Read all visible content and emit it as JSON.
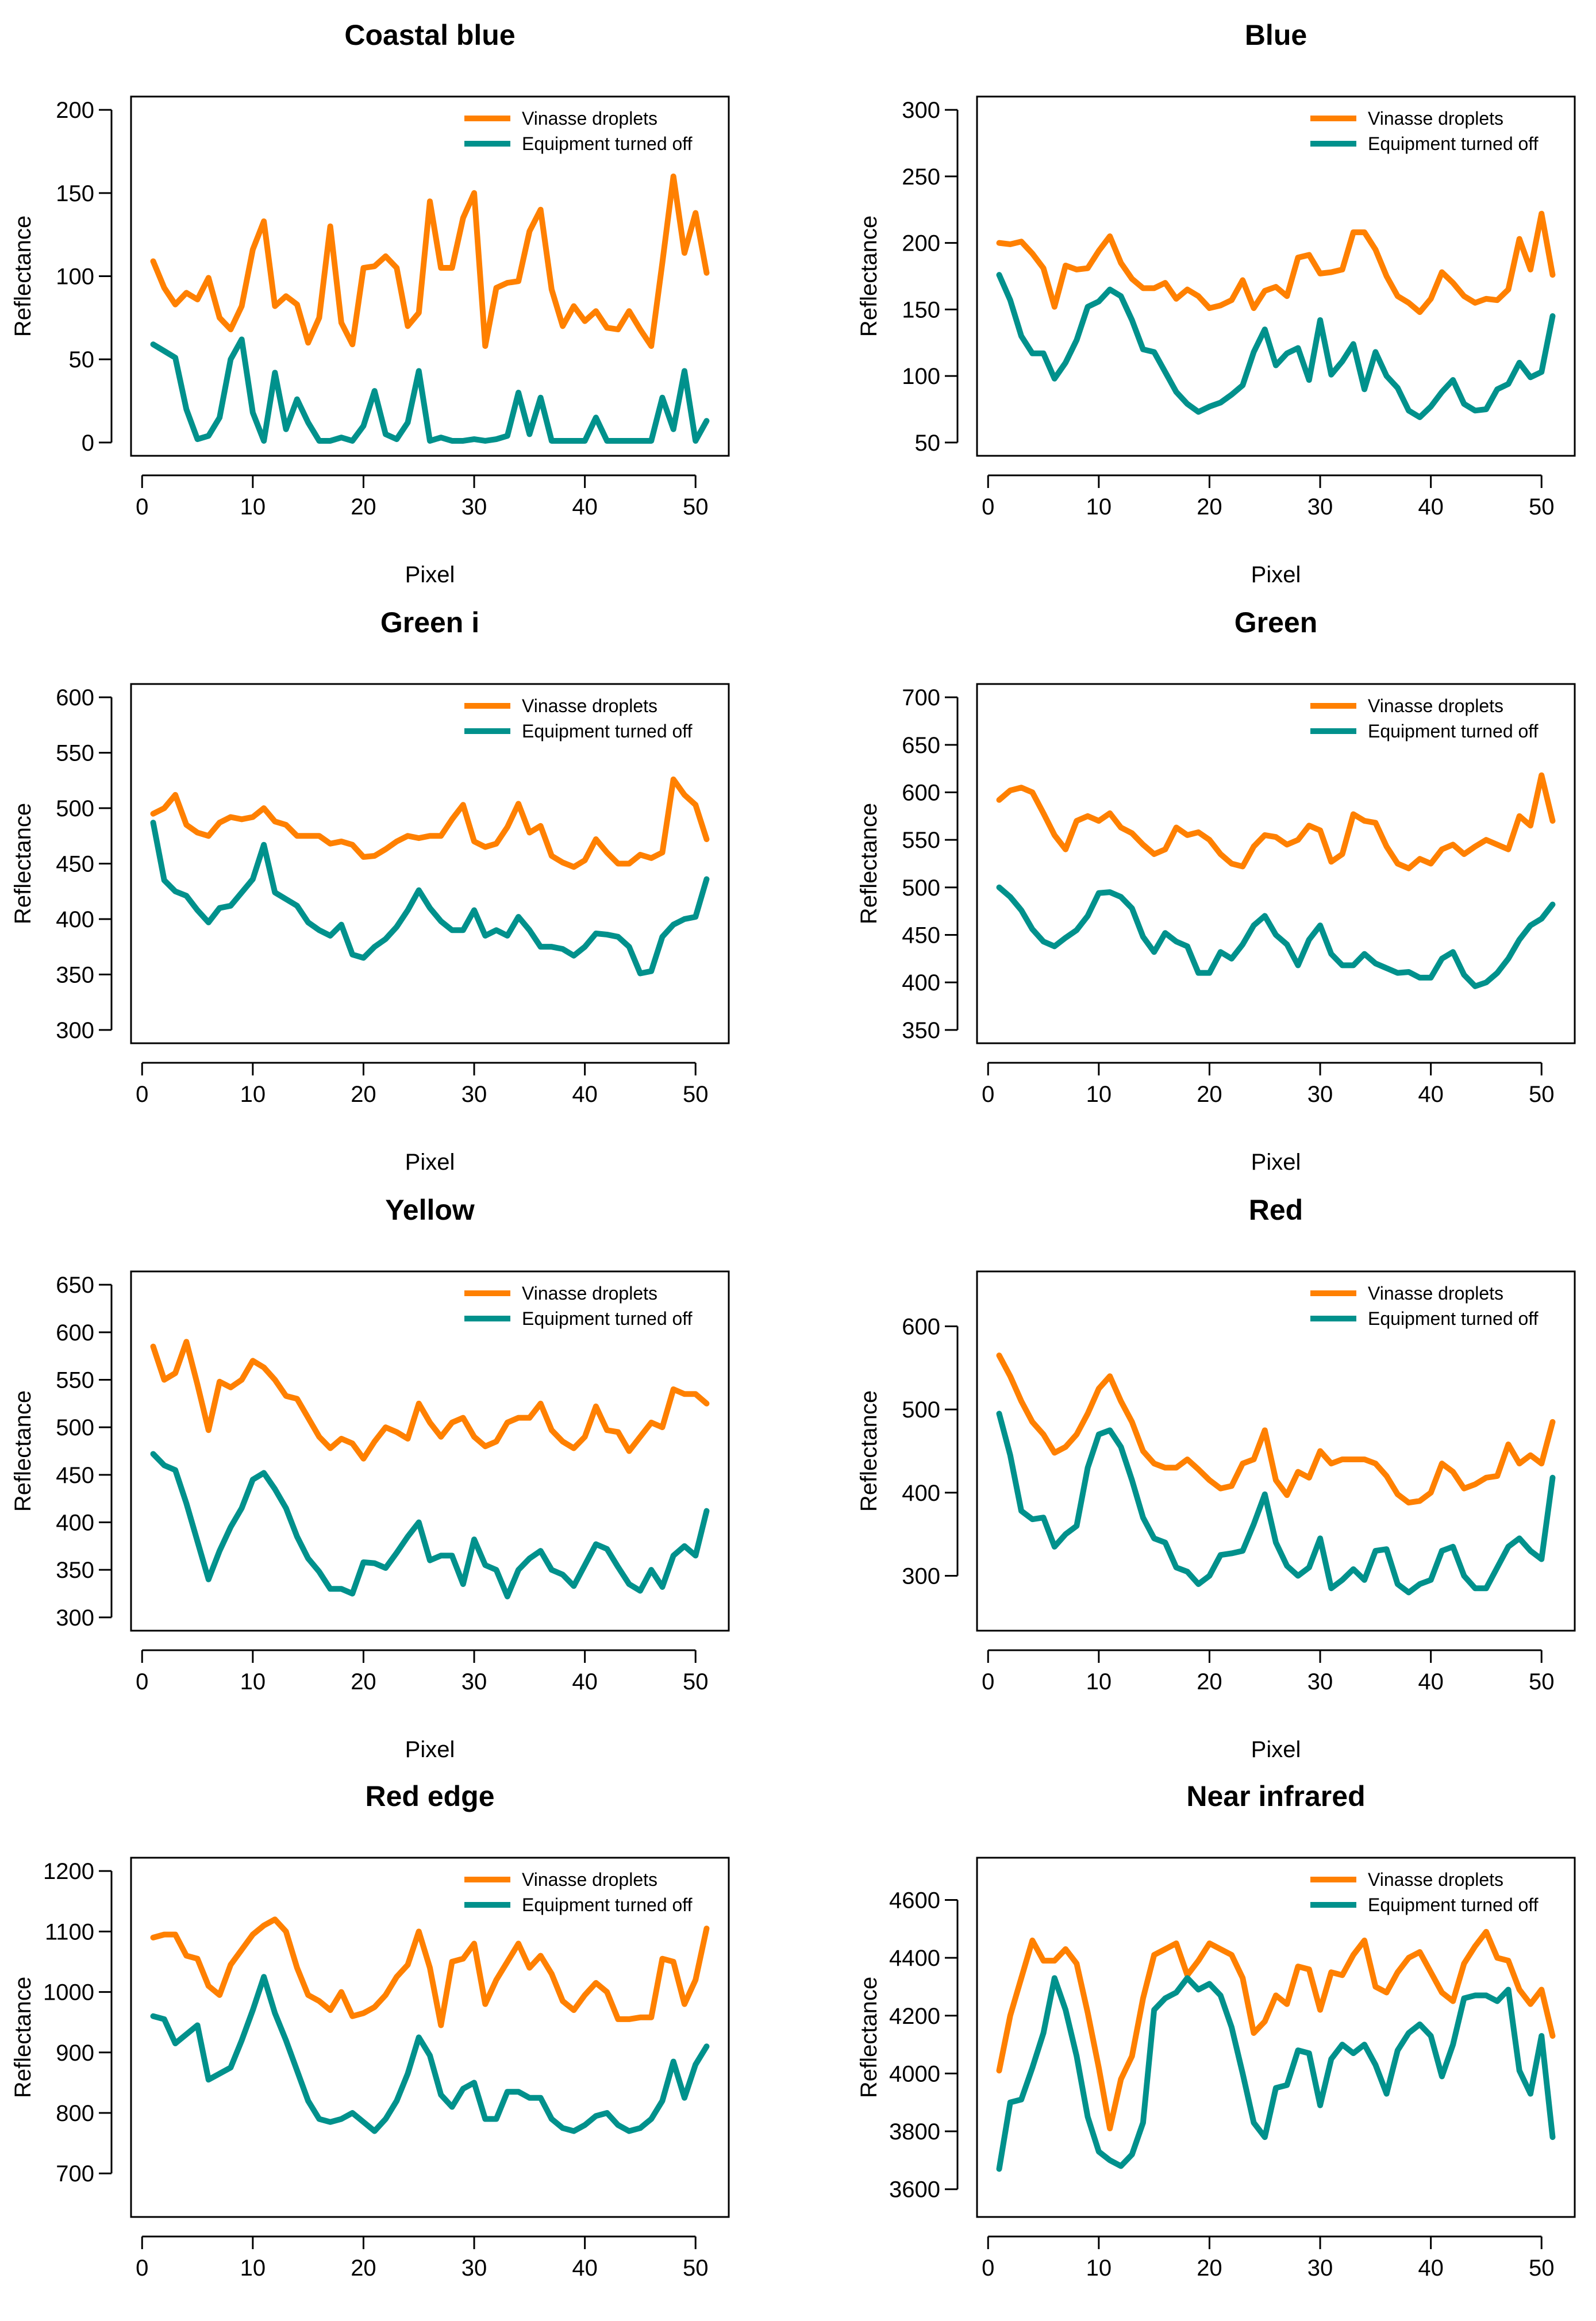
{
  "figure": {
    "x_label": "Pixel",
    "y_label": "Reflectance"
  },
  "colors": {
    "vinasse": "#FF8000",
    "off": "#00918C"
  },
  "chart_data": [
    {
      "type": "line",
      "title": "Coastal blue",
      "xlabel": "Pixel",
      "ylabel": "Reflectance",
      "xlim": [
        1,
        51
      ],
      "ylim": [
        0,
        200
      ],
      "xticks": [
        0,
        10,
        20,
        30,
        40,
        50
      ],
      "yticks": [
        0,
        50,
        100,
        150,
        200
      ],
      "legend_position": "top-right",
      "series": [
        {
          "name": "Vinasse droplets",
          "color": "#FF8000",
          "values": [
            109,
            93,
            83,
            90,
            86,
            99,
            75,
            68,
            82,
            116,
            133,
            82,
            88,
            83,
            60,
            75,
            130,
            72,
            59,
            105,
            106,
            112,
            105,
            70,
            78,
            145,
            105,
            105,
            135,
            150,
            58,
            93,
            96,
            97,
            127,
            140,
            92,
            70,
            82,
            73,
            79,
            69,
            68,
            79,
            68,
            58,
            108,
            160,
            114,
            138,
            102
          ]
        },
        {
          "name": "Equipment turned off",
          "color": "#00918C",
          "values": [
            59,
            55,
            51,
            20,
            2,
            4,
            15,
            50,
            62,
            18,
            1,
            42,
            8,
            26,
            12,
            1,
            1,
            3,
            1,
            10,
            31,
            5,
            2,
            12,
            43,
            1,
            3,
            1,
            1,
            2,
            1,
            2,
            4,
            30,
            5,
            27,
            1,
            1,
            1,
            1,
            15,
            1,
            1,
            1,
            1,
            1,
            27,
            8,
            43,
            1,
            13
          ]
        }
      ]
    },
    {
      "type": "line",
      "title": "Blue",
      "xlabel": "Pixel",
      "ylabel": "Reflectance",
      "xlim": [
        1,
        51
      ],
      "ylim": [
        50,
        300
      ],
      "xticks": [
        0,
        10,
        20,
        30,
        40,
        50
      ],
      "yticks": [
        50,
        100,
        150,
        200,
        250,
        300
      ],
      "legend_position": "top-right",
      "series": [
        {
          "name": "Vinasse droplets",
          "color": "#FF8000",
          "values": [
            200,
            199,
            201,
            192,
            181,
            152,
            183,
            180,
            181,
            194,
            205,
            185,
            173,
            166,
            166,
            170,
            158,
            165,
            160,
            151,
            153,
            157,
            172,
            151,
            164,
            167,
            160,
            189,
            191,
            177,
            178,
            180,
            208,
            208,
            195,
            175,
            160,
            155,
            148,
            158,
            178,
            170,
            160,
            155,
            158,
            157,
            165,
            203,
            180,
            222,
            176
          ]
        },
        {
          "name": "Equipment turned off",
          "color": "#00918C",
          "values": [
            176,
            157,
            130,
            117,
            117,
            98,
            110,
            127,
            152,
            156,
            165,
            160,
            142,
            120,
            118,
            103,
            88,
            79,
            73,
            77,
            80,
            86,
            93,
            118,
            135,
            108,
            117,
            121,
            97,
            142,
            101,
            111,
            124,
            90,
            118,
            100,
            91,
            74,
            69,
            77,
            88,
            97,
            79,
            74,
            75,
            90,
            94,
            110,
            99,
            103,
            145
          ]
        }
      ]
    },
    {
      "type": "line",
      "title": "Green i",
      "xlabel": "Pixel",
      "ylabel": "Reflectance",
      "xlim": [
        1,
        51
      ],
      "ylim": [
        300,
        600
      ],
      "xticks": [
        0,
        10,
        20,
        30,
        40,
        50
      ],
      "yticks": [
        300,
        350,
        400,
        450,
        500,
        550,
        600
      ],
      "legend_position": "top-right",
      "series": [
        {
          "name": "Vinasse droplets",
          "color": "#FF8000",
          "values": [
            495,
            500,
            512,
            485,
            478,
            475,
            487,
            492,
            490,
            492,
            500,
            488,
            485,
            475,
            475,
            475,
            468,
            470,
            467,
            456,
            457,
            463,
            470,
            475,
            473,
            475,
            475,
            490,
            503,
            470,
            465,
            468,
            483,
            504,
            478,
            484,
            457,
            451,
            447,
            453,
            472,
            460,
            450,
            450,
            458,
            455,
            460,
            526,
            512,
            503,
            472
          ]
        },
        {
          "name": "Equipment turned off",
          "color": "#00918C",
          "values": [
            487,
            435,
            425,
            421,
            408,
            397,
            410,
            412,
            424,
            436,
            467,
            424,
            418,
            412,
            397,
            390,
            385,
            395,
            368,
            365,
            375,
            382,
            393,
            408,
            426,
            410,
            398,
            390,
            390,
            408,
            385,
            390,
            385,
            402,
            390,
            375,
            375,
            373,
            367,
            375,
            387,
            386,
            384,
            375,
            351,
            353,
            384,
            395,
            400,
            402,
            436
          ]
        }
      ]
    },
    {
      "type": "line",
      "title": "Green",
      "xlabel": "Pixel",
      "ylabel": "Reflectance",
      "xlim": [
        1,
        51
      ],
      "ylim": [
        350,
        700
      ],
      "xticks": [
        0,
        10,
        20,
        30,
        40,
        50
      ],
      "yticks": [
        350,
        400,
        450,
        500,
        550,
        600,
        650,
        700
      ],
      "legend_position": "top-right",
      "series": [
        {
          "name": "Vinasse droplets",
          "color": "#FF8000",
          "values": [
            592,
            602,
            605,
            600,
            578,
            555,
            540,
            570,
            575,
            570,
            578,
            563,
            557,
            545,
            535,
            540,
            563,
            555,
            558,
            550,
            535,
            525,
            522,
            543,
            555,
            553,
            545,
            550,
            565,
            560,
            527,
            535,
            577,
            570,
            568,
            543,
            525,
            520,
            530,
            525,
            540,
            545,
            535,
            543,
            550,
            545,
            540,
            575,
            565,
            618,
            570
          ]
        },
        {
          "name": "Equipment turned off",
          "color": "#00918C",
          "values": [
            500,
            490,
            476,
            456,
            443,
            438,
            447,
            455,
            470,
            494,
            495,
            490,
            478,
            448,
            432,
            452,
            443,
            438,
            410,
            410,
            432,
            425,
            440,
            460,
            470,
            450,
            440,
            418,
            445,
            460,
            430,
            418,
            418,
            430,
            420,
            415,
            410,
            411,
            405,
            405,
            425,
            432,
            408,
            396,
            400,
            410,
            425,
            445,
            460,
            467,
            482
          ]
        }
      ]
    },
    {
      "type": "line",
      "title": "Yellow",
      "xlabel": "Pixel",
      "ylabel": "Reflectance",
      "xlim": [
        1,
        51
      ],
      "ylim": [
        300,
        650
      ],
      "xticks": [
        0,
        10,
        20,
        30,
        40,
        50
      ],
      "yticks": [
        300,
        350,
        400,
        450,
        500,
        550,
        600,
        650
      ],
      "legend_position": "top-right",
      "series": [
        {
          "name": "Vinasse droplets",
          "color": "#FF8000",
          "values": [
            585,
            550,
            557,
            590,
            545,
            497,
            548,
            542,
            550,
            570,
            563,
            550,
            533,
            530,
            510,
            490,
            478,
            488,
            483,
            467,
            485,
            500,
            495,
            488,
            525,
            505,
            490,
            505,
            510,
            490,
            480,
            485,
            505,
            510,
            510,
            525,
            497,
            485,
            478,
            490,
            522,
            497,
            495,
            475,
            490,
            505,
            500,
            540,
            535,
            535,
            525
          ]
        },
        {
          "name": "Equipment turned off",
          "color": "#00918C",
          "values": [
            472,
            460,
            455,
            420,
            380,
            340,
            370,
            395,
            415,
            445,
            452,
            435,
            415,
            385,
            362,
            348,
            330,
            330,
            325,
            358,
            357,
            352,
            368,
            385,
            400,
            360,
            365,
            365,
            335,
            382,
            355,
            350,
            322,
            350,
            362,
            370,
            350,
            345,
            333,
            355,
            377,
            372,
            353,
            335,
            328,
            350,
            332,
            365,
            375,
            365,
            412
          ]
        }
      ]
    },
    {
      "type": "line",
      "title": "Red",
      "xlabel": "Pixel",
      "ylabel": "Reflectance",
      "xlim": [
        1,
        51
      ],
      "ylim": [
        250,
        650
      ],
      "xticks": [
        0,
        10,
        20,
        30,
        40,
        50
      ],
      "yticks": [
        300,
        400,
        500,
        600
      ],
      "legend_position": "top-right",
      "series": [
        {
          "name": "Vinasse droplets",
          "color": "#FF8000",
          "values": [
            565,
            540,
            510,
            485,
            470,
            448,
            455,
            470,
            495,
            525,
            540,
            510,
            485,
            450,
            435,
            430,
            430,
            440,
            428,
            415,
            405,
            408,
            435,
            440,
            475,
            415,
            397,
            425,
            418,
            450,
            435,
            440,
            440,
            440,
            435,
            420,
            398,
            388,
            390,
            400,
            435,
            425,
            405,
            410,
            418,
            420,
            458,
            435,
            445,
            435,
            485
          ]
        },
        {
          "name": "Equipment turned off",
          "color": "#00918C",
          "values": [
            495,
            445,
            378,
            368,
            370,
            335,
            350,
            360,
            430,
            470,
            475,
            455,
            415,
            370,
            345,
            340,
            310,
            305,
            290,
            300,
            325,
            327,
            330,
            362,
            398,
            340,
            312,
            300,
            310,
            345,
            285,
            295,
            308,
            295,
            330,
            332,
            290,
            280,
            290,
            295,
            330,
            335,
            300,
            285,
            285,
            310,
            335,
            345,
            330,
            320,
            418
          ]
        }
      ]
    },
    {
      "type": "line",
      "title": "Red edge",
      "xlabel": "Pixel",
      "ylabel": "Reflectance",
      "xlim": [
        1,
        51
      ],
      "ylim": [
        650,
        1200
      ],
      "xticks": [
        0,
        10,
        20,
        30,
        40,
        50
      ],
      "yticks": [
        700,
        800,
        900,
        1000,
        1100,
        1200
      ],
      "legend_position": "top-right",
      "series": [
        {
          "name": "Vinasse droplets",
          "color": "#FF8000",
          "values": [
            1090,
            1095,
            1095,
            1060,
            1055,
            1010,
            995,
            1045,
            1070,
            1095,
            1110,
            1120,
            1100,
            1040,
            995,
            985,
            970,
            1000,
            960,
            965,
            975,
            995,
            1025,
            1045,
            1100,
            1040,
            945,
            1050,
            1055,
            1080,
            980,
            1020,
            1050,
            1080,
            1040,
            1060,
            1030,
            985,
            970,
            995,
            1015,
            1000,
            955,
            955,
            958,
            958,
            1055,
            1050,
            980,
            1020,
            1105
          ]
        },
        {
          "name": "Equipment turned off",
          "color": "#00918C",
          "values": [
            960,
            955,
            915,
            930,
            945,
            855,
            865,
            875,
            920,
            970,
            1025,
            965,
            920,
            870,
            820,
            790,
            785,
            790,
            800,
            785,
            770,
            790,
            820,
            865,
            925,
            895,
            830,
            810,
            840,
            850,
            790,
            790,
            835,
            835,
            825,
            825,
            790,
            775,
            770,
            780,
            795,
            800,
            780,
            770,
            775,
            790,
            820,
            885,
            825,
            880,
            910
          ]
        }
      ]
    },
    {
      "type": "line",
      "title": "Near infrared",
      "xlabel": "Pixel",
      "ylabel": "Reflectance",
      "xlim": [
        1,
        51
      ],
      "ylim": [
        3550,
        4700
      ],
      "xticks": [
        0,
        10,
        20,
        30,
        40,
        50
      ],
      "yticks": [
        3600,
        3800,
        4000,
        4200,
        4400,
        4600
      ],
      "legend_position": "top-right",
      "series": [
        {
          "name": "Vinasse droplets",
          "color": "#FF8000",
          "values": [
            4010,
            4200,
            4330,
            4460,
            4390,
            4390,
            4430,
            4380,
            4210,
            4020,
            3810,
            3980,
            4060,
            4260,
            4410,
            4430,
            4450,
            4340,
            4390,
            4450,
            4430,
            4410,
            4330,
            4140,
            4180,
            4270,
            4240,
            4370,
            4360,
            4220,
            4350,
            4340,
            4410,
            4460,
            4300,
            4280,
            4350,
            4400,
            4420,
            4350,
            4280,
            4250,
            4380,
            4440,
            4490,
            4400,
            4390,
            4290,
            4240,
            4290,
            4130
          ]
        },
        {
          "name": "Equipment turned off",
          "color": "#00918C",
          "values": [
            3670,
            3900,
            3910,
            4020,
            4140,
            4330,
            4220,
            4060,
            3850,
            3730,
            3700,
            3680,
            3720,
            3830,
            4220,
            4260,
            4280,
            4330,
            4290,
            4310,
            4270,
            4160,
            4000,
            3830,
            3780,
            3950,
            3960,
            4080,
            4070,
            3890,
            4050,
            4100,
            4070,
            4100,
            4030,
            3930,
            4080,
            4140,
            4170,
            4130,
            3990,
            4100,
            4260,
            4270,
            4270,
            4250,
            4290,
            4010,
            3930,
            4130,
            3780
          ]
        }
      ]
    }
  ]
}
